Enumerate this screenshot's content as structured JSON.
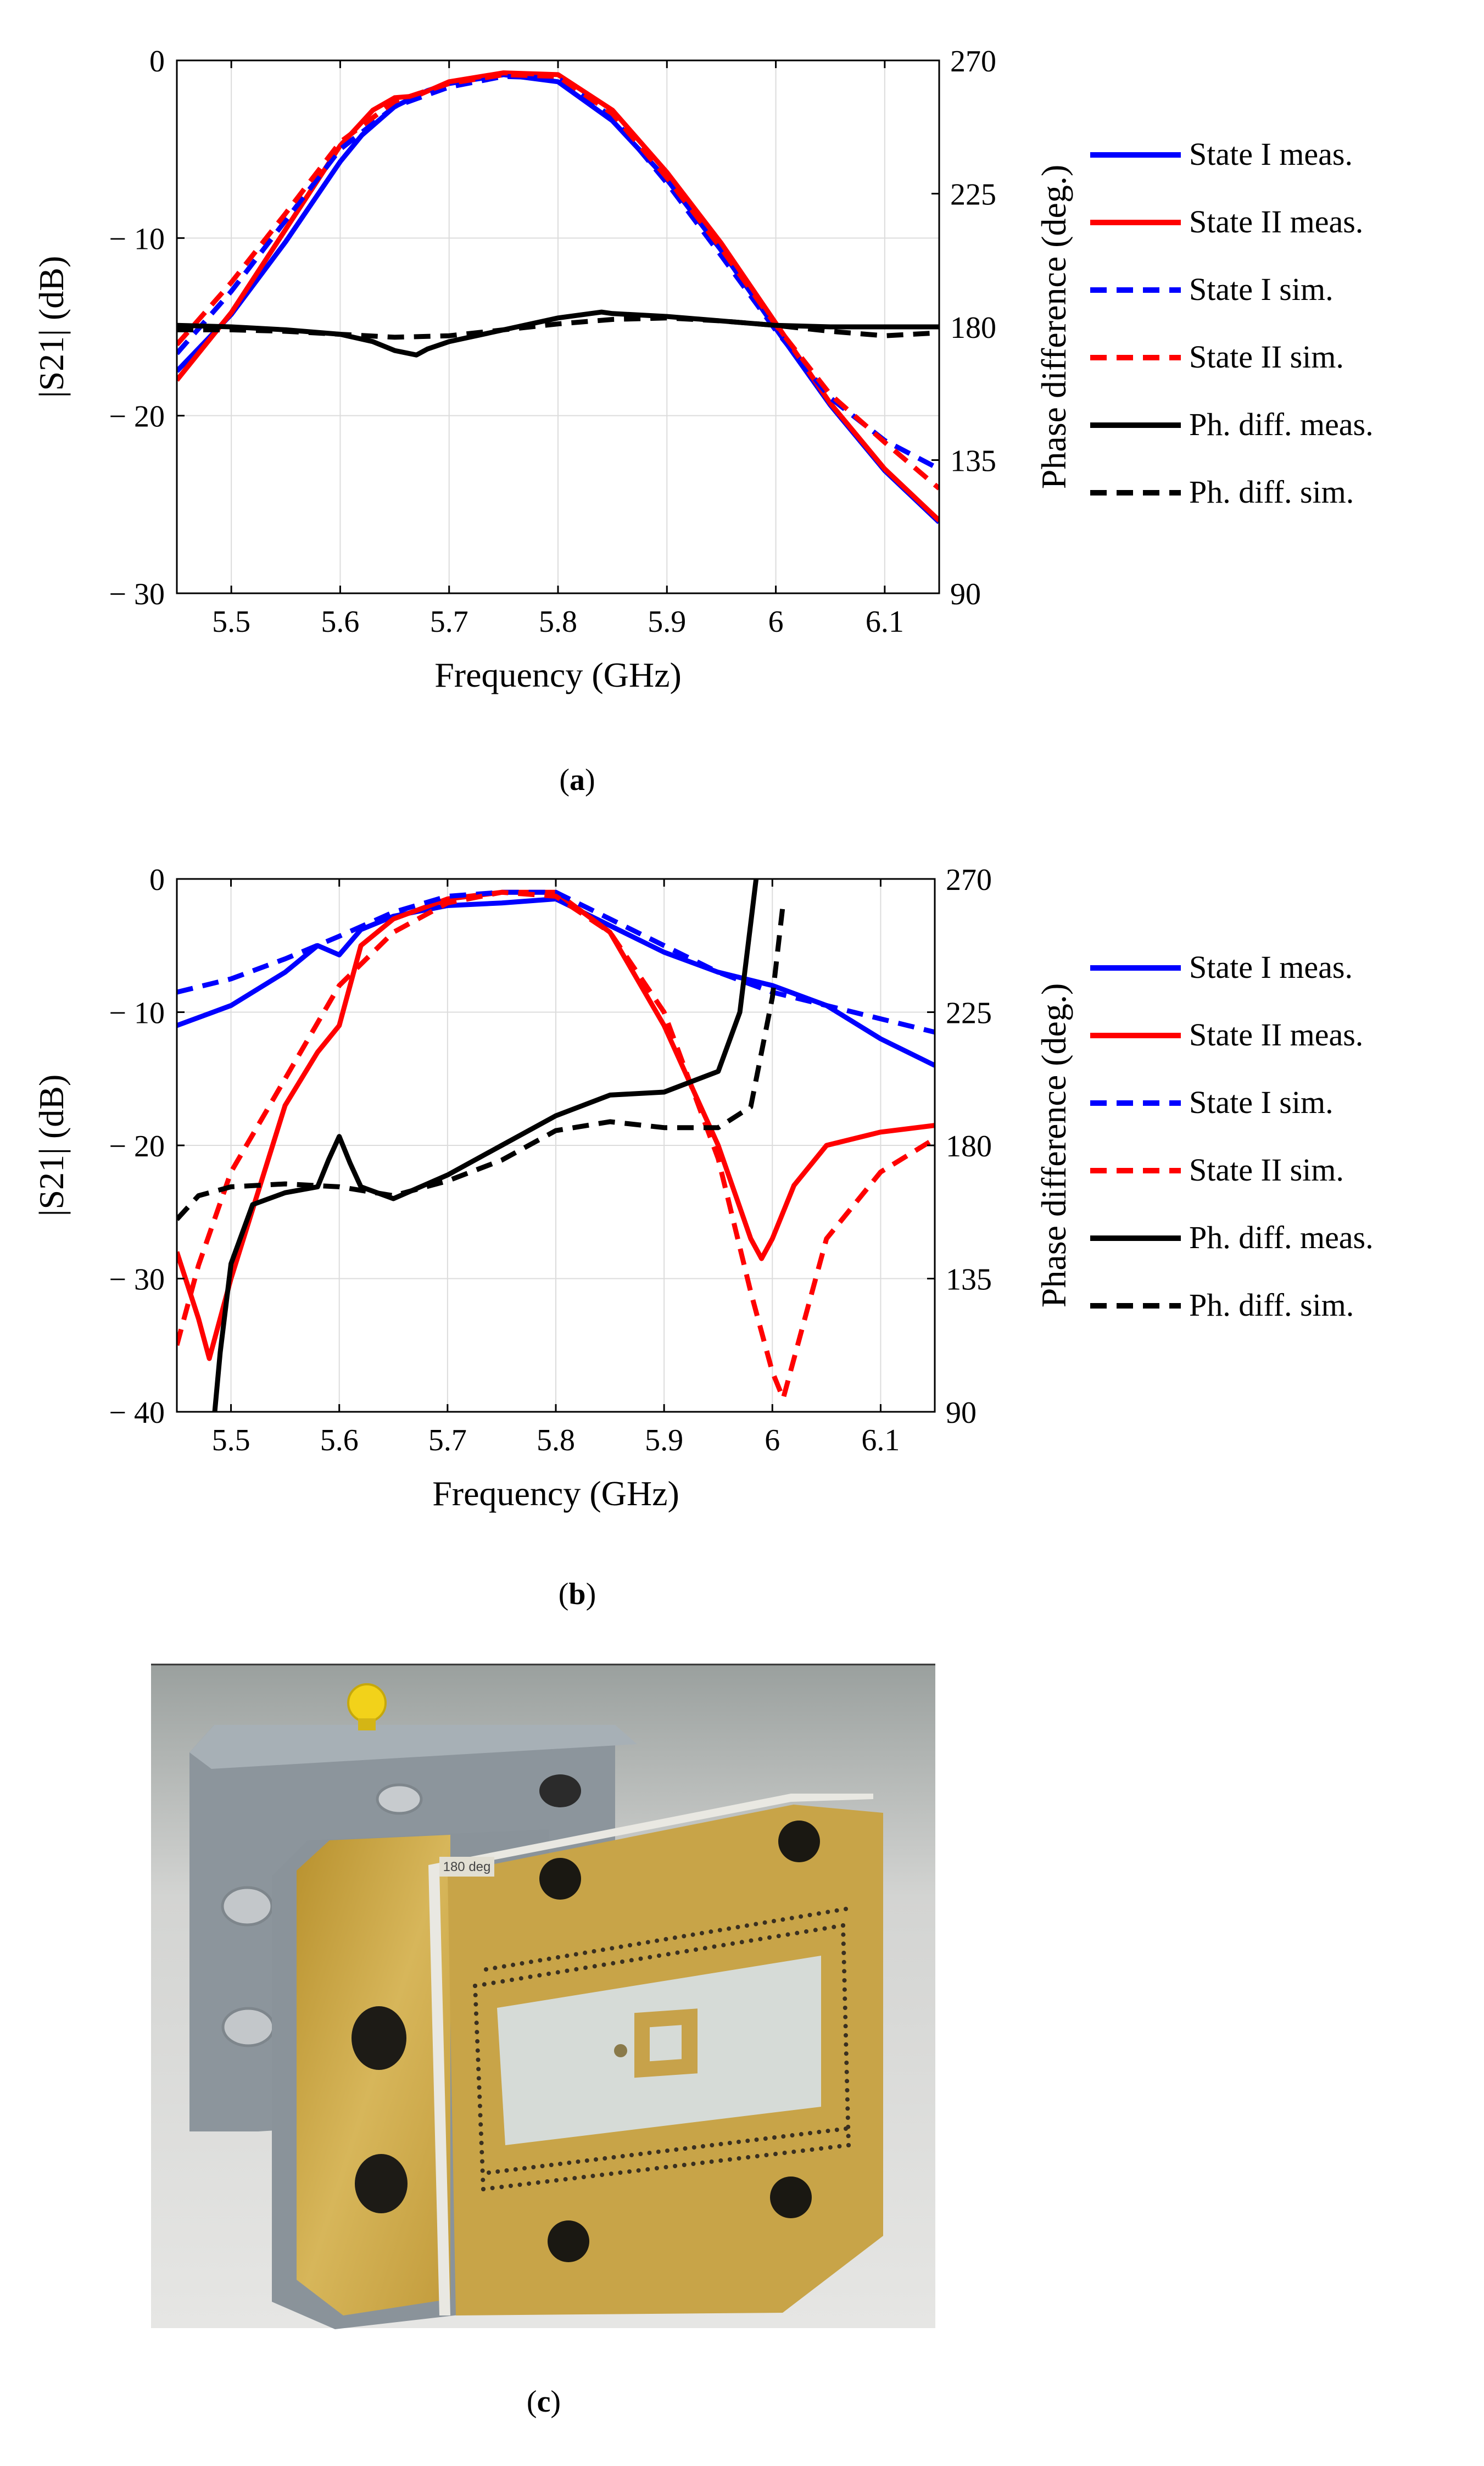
{
  "captions": {
    "a": "a",
    "b": "b",
    "c": "c"
  },
  "photo": {
    "board_label": "180 deg",
    "colors": {
      "gray_block": "#8f989f",
      "brass": "#c9a545",
      "substrate": "#d7dcd8",
      "background": "#e4e4e2",
      "yellow_knob": "#f2d21a"
    }
  },
  "legend": {
    "entries": [
      {
        "label": "State I meas.",
        "color": "#0000ff",
        "dash": "solid"
      },
      {
        "label": "State II meas.",
        "color": "#ff0000",
        "dash": "solid"
      },
      {
        "label": "State I sim.",
        "color": "#0000ff",
        "dash": "dashed"
      },
      {
        "label": "State II sim.",
        "color": "#ff0000",
        "dash": "dashed"
      },
      {
        "label": "Ph. diff. meas.",
        "color": "#000000",
        "dash": "solid"
      },
      {
        "label": "Ph. diff. sim.",
        "color": "#000000",
        "dash": "dashed"
      }
    ]
  },
  "chart_data": [
    {
      "id": "a",
      "type": "line",
      "xlabel": "Frequency (GHz)",
      "ylabel": "|S21| (dB)",
      "y2label": "Phase difference (deg.)",
      "xlim": [
        5.45,
        6.15
      ],
      "ylim": [
        -30,
        0
      ],
      "y2lim": [
        90,
        270
      ],
      "xticks": [
        5.5,
        5.6,
        5.7,
        5.8,
        5.9,
        6.0,
        6.1
      ],
      "xtick_labels": [
        "5.5",
        "5.6",
        "5.7",
        "5.8",
        "5.9",
        "6",
        "6.1"
      ],
      "yticks": [
        0,
        -10,
        -20,
        -30
      ],
      "ytick_labels": [
        "0",
        "− 10",
        "− 20",
        "− 30"
      ],
      "y2ticks": [
        270,
        225,
        180,
        135,
        90
      ],
      "y2tick_labels": [
        "270",
        "225",
        "180",
        "135",
        "90"
      ],
      "grid": true,
      "legend_position": "right",
      "series": [
        {
          "name": "State I meas.",
          "axis": "left",
          "color": "#0000ff",
          "dash": "solid",
          "x": [
            5.45,
            5.5,
            5.55,
            5.6,
            5.62,
            5.65,
            5.68,
            5.7,
            5.75,
            5.8,
            5.85,
            5.9,
            5.95,
            6.0,
            6.05,
            6.1,
            6.15
          ],
          "y": [
            -17.5,
            -14.3,
            -10.2,
            -5.7,
            -4.2,
            -2.6,
            -1.7,
            -1.3,
            -0.8,
            -1.2,
            -3.4,
            -6.7,
            -10.7,
            -15.1,
            -19.4,
            -23.1,
            -26.0
          ]
        },
        {
          "name": "State II meas.",
          "axis": "left",
          "color": "#ff0000",
          "dash": "solid",
          "x": [
            5.45,
            5.5,
            5.55,
            5.6,
            5.63,
            5.65,
            5.67,
            5.7,
            5.75,
            5.8,
            5.85,
            5.9,
            5.95,
            6.0,
            6.05,
            6.1,
            6.15
          ],
          "y": [
            -18.0,
            -14.2,
            -9.5,
            -4.8,
            -2.8,
            -2.1,
            -2.0,
            -1.2,
            -0.7,
            -0.8,
            -2.8,
            -6.3,
            -10.3,
            -14.8,
            -19.3,
            -23.0,
            -25.9
          ]
        },
        {
          "name": "State I sim.",
          "axis": "left",
          "color": "#0000ff",
          "dash": "dashed",
          "x": [
            5.45,
            5.5,
            5.55,
            5.6,
            5.65,
            5.7,
            5.75,
            5.8,
            5.85,
            5.9,
            5.95,
            6.0,
            6.05,
            6.1,
            6.15
          ],
          "y": [
            -16.5,
            -13.0,
            -9.0,
            -5.0,
            -2.6,
            -1.5,
            -0.9,
            -1.0,
            -3.2,
            -6.9,
            -11.0,
            -15.2,
            -19.0,
            -21.4,
            -23.0
          ]
        },
        {
          "name": "State II sim.",
          "axis": "left",
          "color": "#ff0000",
          "dash": "dashed",
          "x": [
            5.45,
            5.5,
            5.55,
            5.6,
            5.65,
            5.7,
            5.75,
            5.8,
            5.85,
            5.9,
            5.95,
            6.0,
            6.05,
            6.1,
            6.15
          ],
          "y": [
            -16.0,
            -12.5,
            -8.6,
            -4.6,
            -2.3,
            -1.3,
            -0.8,
            -0.9,
            -3.0,
            -6.6,
            -10.6,
            -14.9,
            -18.8,
            -21.5,
            -24.1
          ]
        },
        {
          "name": "Ph. diff. meas.",
          "axis": "right",
          "color": "#000000",
          "dash": "solid",
          "x": [
            5.45,
            5.5,
            5.55,
            5.6,
            5.63,
            5.65,
            5.67,
            5.68,
            5.7,
            5.75,
            5.8,
            5.84,
            5.85,
            5.9,
            5.95,
            6.0,
            6.05,
            6.1,
            6.15
          ],
          "y": [
            180.5,
            180.0,
            179.0,
            177.5,
            175.0,
            172.0,
            170.5,
            172.5,
            175.0,
            179.0,
            183.0,
            185.0,
            184.5,
            183.5,
            182.0,
            180.5,
            180.0,
            180.0,
            180.0
          ]
        },
        {
          "name": "Ph. diff. sim.",
          "axis": "right",
          "color": "#000000",
          "dash": "dashed",
          "x": [
            5.45,
            5.5,
            5.55,
            5.6,
            5.65,
            5.7,
            5.75,
            5.8,
            5.85,
            5.9,
            5.95,
            6.0,
            6.05,
            6.1,
            6.15
          ],
          "y": [
            179.0,
            179.0,
            178.5,
            177.5,
            176.5,
            177.0,
            179.0,
            181.0,
            182.5,
            183.0,
            182.0,
            180.5,
            178.5,
            177.0,
            178.0
          ]
        }
      ]
    },
    {
      "id": "b",
      "type": "line",
      "xlabel": "Frequency (GHz)",
      "ylabel": "|S21| (dB)",
      "y2label": "Phase difference (deg.)",
      "xlim": [
        5.45,
        6.15
      ],
      "ylim": [
        -40,
        0
      ],
      "y2lim": [
        90,
        270
      ],
      "xticks": [
        5.5,
        5.6,
        5.7,
        5.8,
        5.9,
        6.0,
        6.1
      ],
      "xtick_labels": [
        "5.5",
        "5.6",
        "5.7",
        "5.8",
        "5.9",
        "6",
        "6.1"
      ],
      "yticks": [
        0,
        -10,
        -20,
        -30,
        -40
      ],
      "ytick_labels": [
        "0",
        "− 10",
        "− 20",
        "− 30",
        "− 40"
      ],
      "y2ticks": [
        270,
        225,
        180,
        135,
        90
      ],
      "y2tick_labels": [
        "270",
        "225",
        "180",
        "135",
        "90"
      ],
      "grid": true,
      "legend_position": "right",
      "series": [
        {
          "name": "State I meas.",
          "axis": "left",
          "color": "#0000ff",
          "dash": "solid",
          "x": [
            5.45,
            5.5,
            5.55,
            5.58,
            5.6,
            5.62,
            5.65,
            5.7,
            5.75,
            5.8,
            5.85,
            5.9,
            5.95,
            6.0,
            6.05,
            6.1,
            6.15
          ],
          "y": [
            -11.0,
            -9.5,
            -7.0,
            -5.0,
            -5.7,
            -3.8,
            -2.8,
            -2.0,
            -1.8,
            -1.5,
            -3.5,
            -5.5,
            -7.0,
            -8.0,
            -9.5,
            -12.0,
            -14.0
          ]
        },
        {
          "name": "State II meas.",
          "axis": "left",
          "color": "#ff0000",
          "dash": "solid",
          "x": [
            5.45,
            5.47,
            5.48,
            5.5,
            5.55,
            5.58,
            5.6,
            5.62,
            5.65,
            5.7,
            5.75,
            5.8,
            5.85,
            5.9,
            5.95,
            5.98,
            5.99,
            6.0,
            6.02,
            6.05,
            6.1,
            6.15
          ],
          "y": [
            -28.0,
            -33.0,
            -36.0,
            -30.0,
            -17.0,
            -13.0,
            -11.0,
            -5.0,
            -3.0,
            -1.5,
            -1.0,
            -1.0,
            -4.0,
            -11.0,
            -20.0,
            -27.0,
            -28.5,
            -27.0,
            -23.0,
            -20.0,
            -19.0,
            -18.5
          ]
        },
        {
          "name": "State I sim.",
          "axis": "left",
          "color": "#0000ff",
          "dash": "dashed",
          "x": [
            5.45,
            5.5,
            5.55,
            5.6,
            5.65,
            5.7,
            5.75,
            5.8,
            5.85,
            5.9,
            5.95,
            6.0,
            6.05,
            6.1,
            6.15
          ],
          "y": [
            -8.5,
            -7.5,
            -6.0,
            -4.3,
            -2.5,
            -1.3,
            -1.0,
            -1.0,
            -3.0,
            -5.0,
            -7.0,
            -8.5,
            -9.5,
            -10.5,
            -11.5
          ]
        },
        {
          "name": "State II sim.",
          "axis": "left",
          "color": "#ff0000",
          "dash": "dashed",
          "x": [
            5.45,
            5.47,
            5.5,
            5.55,
            5.6,
            5.65,
            5.7,
            5.75,
            5.8,
            5.85,
            5.9,
            5.95,
            5.98,
            6.0,
            6.01,
            6.03,
            6.05,
            6.1,
            6.15
          ],
          "y": [
            -35.0,
            -29.0,
            -22.0,
            -15.0,
            -8.0,
            -4.0,
            -1.8,
            -1.0,
            -1.3,
            -4.0,
            -10.0,
            -21.0,
            -31.0,
            -37.0,
            -39.0,
            -33.0,
            -27.0,
            -22.0,
            -19.5
          ]
        },
        {
          "name": "Ph. diff. meas.",
          "axis": "right",
          "color": "#000000",
          "dash": "solid",
          "x": [
            5.485,
            5.49,
            5.5,
            5.52,
            5.55,
            5.58,
            5.59,
            5.6,
            5.61,
            5.62,
            5.65,
            5.7,
            5.75,
            5.8,
            5.85,
            5.9,
            5.95,
            5.97,
            5.98,
            5.985
          ],
          "y": [
            90.0,
            110.0,
            140.0,
            160.0,
            164.0,
            166.0,
            175.0,
            183.0,
            174.0,
            166.0,
            162.0,
            170.0,
            180.0,
            190.0,
            197.0,
            198.0,
            205.0,
            225.0,
            255.0,
            270.0
          ]
        },
        {
          "name": "Ph. diff. sim.",
          "axis": "right",
          "color": "#000000",
          "dash": "dashed",
          "x": [
            5.45,
            5.47,
            5.5,
            5.55,
            5.6,
            5.65,
            5.7,
            5.75,
            5.8,
            5.85,
            5.9,
            5.95,
            5.98,
            6.0,
            6.01
          ],
          "y": [
            155.0,
            163.0,
            166.0,
            167.0,
            166.0,
            163.0,
            168.0,
            175.0,
            185.0,
            188.0,
            186.0,
            186.0,
            193.0,
            230.0,
            262.0
          ]
        }
      ]
    }
  ]
}
